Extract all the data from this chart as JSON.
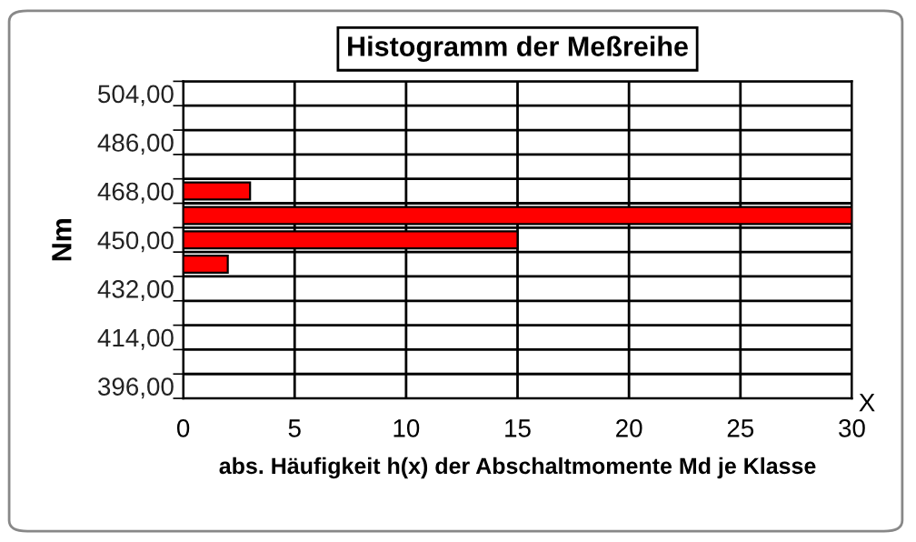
{
  "chart_data": {
    "type": "bar",
    "orientation": "horizontal",
    "title": "Histogramm der Meßreihe",
    "xlabel": "abs. Häufigkeit h(x) der Abschaltmomente Md je Klasse",
    "ylabel": "Nm",
    "categories": [
      "504,00",
      null,
      "486,00",
      null,
      "468,00",
      null,
      "450,00",
      null,
      "432,00",
      null,
      "414,00",
      null,
      "396,00"
    ],
    "values": [
      0,
      0,
      0,
      0,
      3,
      30,
      15,
      2,
      0,
      0,
      0,
      0,
      0
    ],
    "color": "#ff0000",
    "xlim": [
      0,
      30
    ],
    "xticks": [
      0,
      5,
      10,
      15,
      20,
      25,
      30
    ],
    "grid": true,
    "annotations": [
      "X"
    ]
  }
}
